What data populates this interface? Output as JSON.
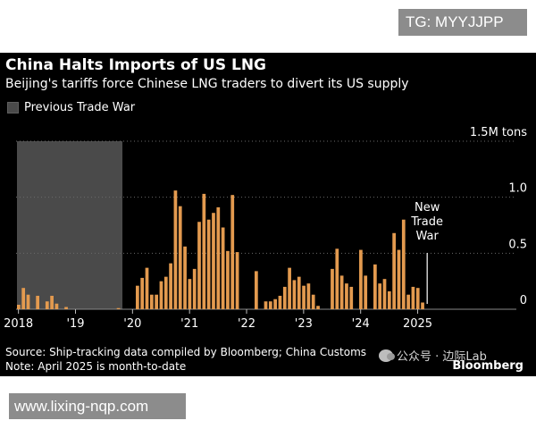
{
  "watermark_top": "TG: MYYJJPP",
  "watermark_bottom": "www.lixing-nqp.com",
  "wechat_watermark": "公众号 · 边际Lab",
  "brand": "Bloomberg",
  "colors": {
    "background": "#000000",
    "bar": "#e39a4f",
    "shade": "#4a4a4a",
    "text": "#ffffff",
    "grid": "#6a6a6a"
  },
  "chart_data": {
    "type": "bar",
    "title": "China Halts Imports of US LNG",
    "subtitle": "Beijing's tariffs force Chinese LNG traders to divert its US supply",
    "legend": [
      {
        "label": "Previous Trade War",
        "color": "#4a4a4a"
      }
    ],
    "unit_label": "1.5M tons",
    "ylim": [
      0,
      1.5
    ],
    "y_ticks": [
      {
        "value": 0,
        "label": "0"
      },
      {
        "value": 0.5,
        "label": "0.5"
      },
      {
        "value": 1.0,
        "label": "1.0"
      },
      {
        "value": 1.5,
        "label": "1.5M tons"
      }
    ],
    "x_start": "2018-01",
    "x_ticks": [
      {
        "index": 0,
        "label": "2018"
      },
      {
        "index": 12,
        "label": "'19"
      },
      {
        "index": 24,
        "label": "'20"
      },
      {
        "index": 36,
        "label": "'21"
      },
      {
        "index": 48,
        "label": "'22"
      },
      {
        "index": 60,
        "label": "'23"
      },
      {
        "index": 72,
        "label": "'24"
      },
      {
        "index": 84,
        "label": "2025"
      }
    ],
    "total_months": 88,
    "shaded_range": {
      "start_index": 0,
      "end_index": 21,
      "label": "Previous Trade War"
    },
    "annotation": {
      "label": [
        "New",
        "Trade",
        "War"
      ],
      "index": 86
    },
    "values": [
      0.04,
      0.19,
      0.13,
      0.0,
      0.12,
      0.0,
      0.07,
      0.12,
      0.05,
      0.0,
      0.02,
      0.0,
      0.0,
      0.0,
      0.0,
      0.0,
      0.0,
      0.0,
      0.0,
      0.0,
      0.0,
      0.01,
      0.0,
      0.0,
      0.0,
      0.21,
      0.28,
      0.37,
      0.13,
      0.13,
      0.25,
      0.29,
      0.41,
      1.06,
      0.92,
      0.56,
      0.27,
      0.36,
      0.78,
      1.03,
      0.8,
      0.86,
      0.91,
      0.73,
      0.52,
      1.02,
      0.51,
      0.0,
      0.0,
      0.0,
      0.34,
      0.0,
      0.07,
      0.07,
      0.09,
      0.12,
      0.2,
      0.37,
      0.26,
      0.29,
      0.21,
      0.23,
      0.13,
      0.03,
      0.0,
      0.0,
      0.36,
      0.54,
      0.3,
      0.23,
      0.2,
      0.0,
      0.53,
      0.3,
      0.0,
      0.4,
      0.23,
      0.27,
      0.16,
      0.68,
      0.53,
      0.8,
      0.13,
      0.2,
      0.19,
      0.06,
      0.0,
      0.0
    ]
  },
  "source": "Source: Ship-tracking data compiled by Bloomberg; China Customs",
  "note": "Note: April 2025 is month-to-date"
}
